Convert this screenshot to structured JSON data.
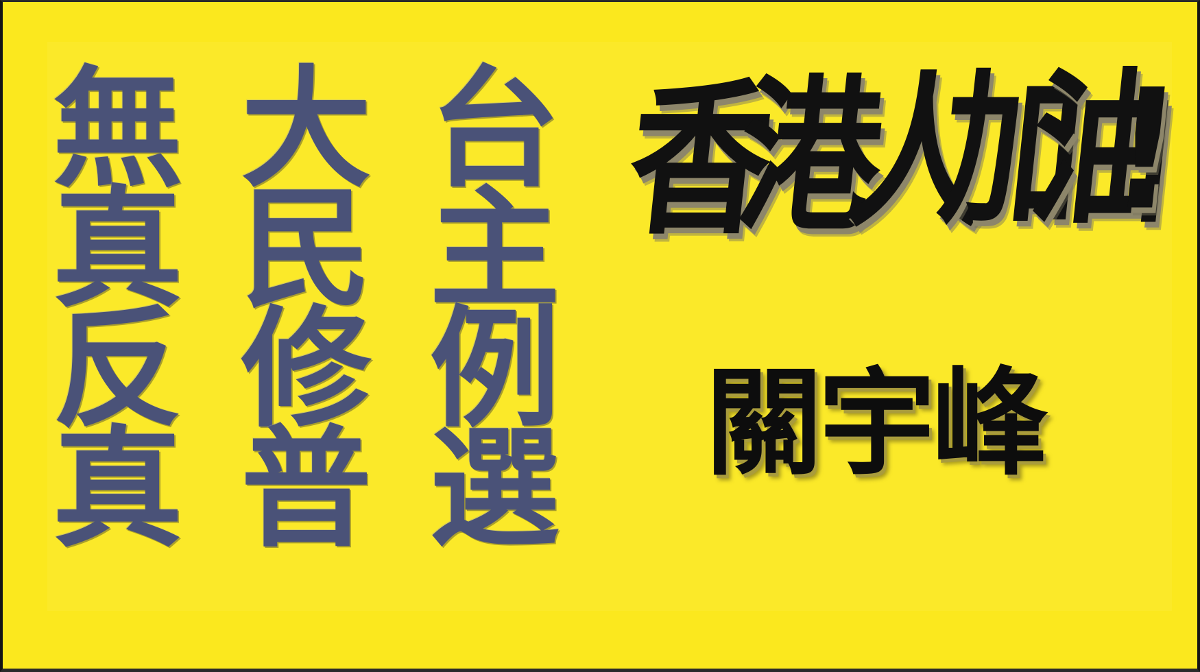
{
  "slogan_columns": [
    {
      "chars": [
        "無",
        "真",
        "反",
        "真"
      ]
    },
    {
      "chars": [
        "大",
        "民",
        "修",
        "普"
      ]
    },
    {
      "chars": [
        "台",
        "主",
        "例",
        "選"
      ]
    }
  ],
  "headline": [
    "香",
    "港",
    "人",
    "加",
    "油",
    "!"
  ],
  "author": [
    "關",
    "宇",
    "峰"
  ],
  "colors": {
    "background": "#fbe81e",
    "embroidery_text": "#4a5278",
    "brush_text": "#111111",
    "border": "#141414"
  }
}
